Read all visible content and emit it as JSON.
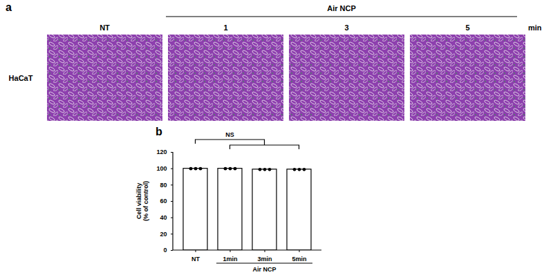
{
  "panel_a": {
    "letter": "a",
    "row_label": "HaCaT",
    "group_label": "Air NCP",
    "columns": [
      "NT",
      "1",
      "3",
      "5"
    ],
    "unit": "min"
  },
  "chart_data": {
    "type": "bar",
    "panel_letter": "b",
    "categories": [
      "NT",
      "1min",
      "3min",
      "5min"
    ],
    "values": [
      100,
      100,
      99,
      99
    ],
    "points": [
      [
        100,
        100,
        100
      ],
      [
        100,
        100,
        100
      ],
      [
        99,
        99,
        99
      ],
      [
        99,
        99,
        99
      ]
    ],
    "ylabel": "Cell viability (% of control)",
    "ylim": [
      0,
      120
    ],
    "yticks": [
      0,
      20,
      40,
      60,
      80,
      100,
      120
    ],
    "group_label": "Air NCP",
    "group_categories": [
      "1min",
      "3min",
      "5min"
    ],
    "annotation": "NS",
    "color": "#ffffff",
    "grid": false
  }
}
